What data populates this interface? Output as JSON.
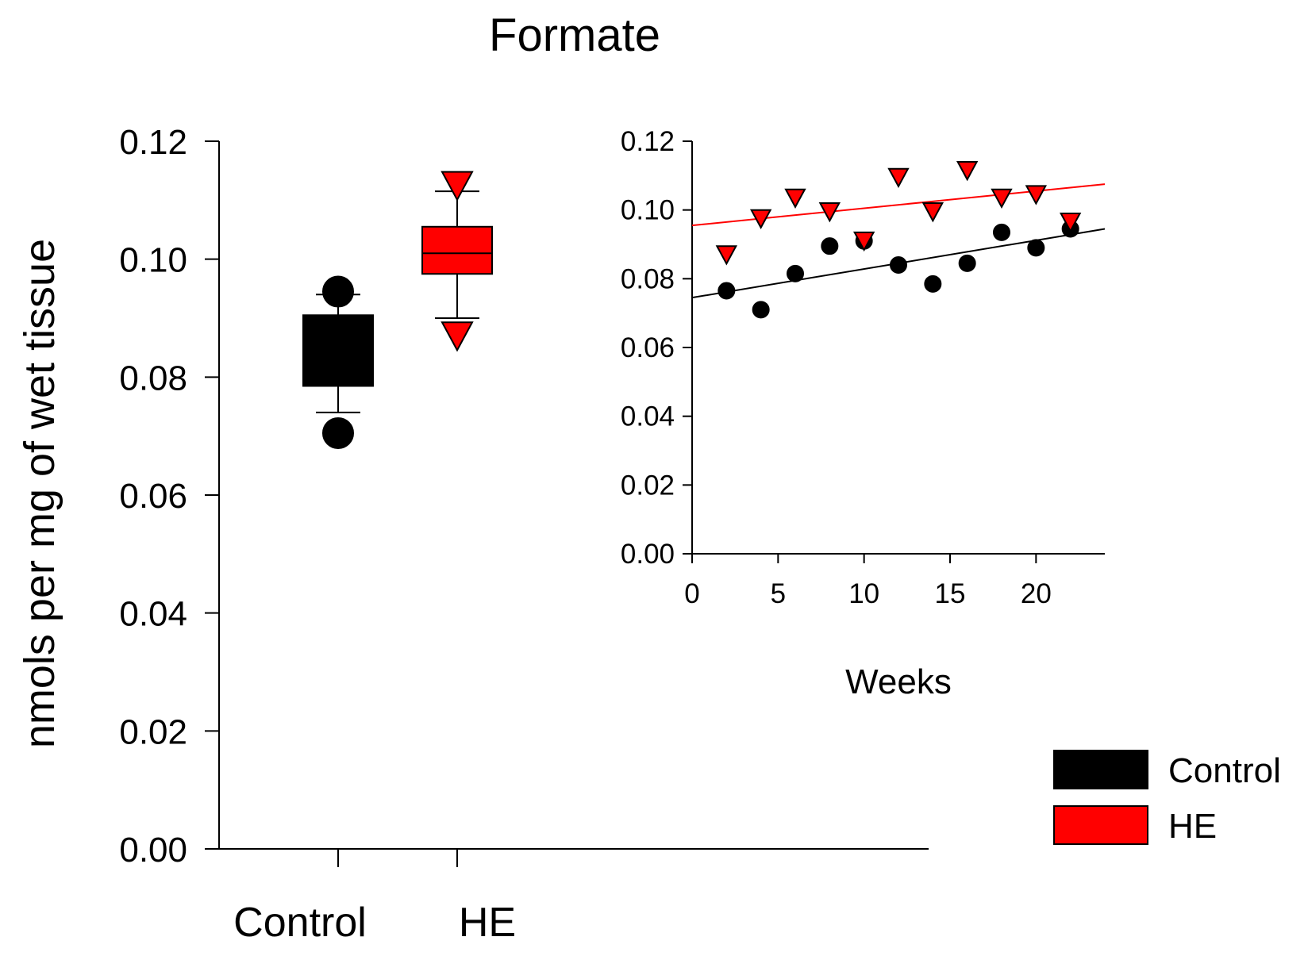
{
  "chart_data": [
    {
      "type": "box",
      "title": "Formate",
      "ylabel": "nmols per mg of wet tissue",
      "xlabel": "",
      "ylim": [
        0,
        0.12
      ],
      "yticks": [
        "0.00",
        "0.02",
        "0.04",
        "0.06",
        "0.08",
        "0.10",
        "0.12"
      ],
      "categories": [
        "Control",
        "HE"
      ],
      "boxes": [
        {
          "name": "Control",
          "color": "#000000",
          "q1": 0.0785,
          "median": 0.0785,
          "q3": 0.0905,
          "whisker_low": 0.074,
          "whisker_high": 0.094,
          "outliers_low": [
            0.0705
          ],
          "outliers_high": [
            0.0945
          ],
          "marker": "circle"
        },
        {
          "name": "HE",
          "color": "#ff0000",
          "q1": 0.0975,
          "median": 0.101,
          "q3": 0.1055,
          "whisker_low": 0.09,
          "whisker_high": 0.1115,
          "outliers_low": [
            0.087
          ],
          "outliers_high": [
            0.1125
          ],
          "marker": "triangle-down"
        }
      ]
    },
    {
      "type": "scatter",
      "role": "inset",
      "xlabel": "Weeks",
      "ylabel": "",
      "xlim": [
        0,
        24
      ],
      "ylim": [
        0,
        0.12
      ],
      "xticks": [
        "0",
        "5",
        "10",
        "15",
        "20"
      ],
      "yticks": [
        "0.00",
        "0.02",
        "0.04",
        "0.06",
        "0.08",
        "0.10",
        "0.12"
      ],
      "series": [
        {
          "name": "Control",
          "color": "#000000",
          "marker": "circle",
          "x": [
            2,
            4,
            6,
            8,
            10,
            12,
            14,
            16,
            18,
            20,
            22
          ],
          "y": [
            0.0765,
            0.071,
            0.0815,
            0.0895,
            0.091,
            0.084,
            0.0785,
            0.0845,
            0.0935,
            0.089,
            0.0945
          ],
          "trend": [
            0.0745,
            0.0945
          ]
        },
        {
          "name": "HE",
          "color": "#ff0000",
          "marker": "triangle-down",
          "x": [
            2,
            4,
            6,
            8,
            10,
            12,
            14,
            16,
            18,
            20,
            22
          ],
          "y": [
            0.087,
            0.0975,
            0.1035,
            0.0995,
            0.091,
            0.1095,
            0.0995,
            0.1115,
            0.1035,
            0.1045,
            0.0965
          ],
          "trend": [
            0.0955,
            0.1075
          ]
        }
      ]
    }
  ],
  "legend": {
    "placement": "bottom-right",
    "items": [
      {
        "label": "Control",
        "color": "#000000"
      },
      {
        "label": "HE",
        "color": "#ff0000"
      }
    ]
  }
}
